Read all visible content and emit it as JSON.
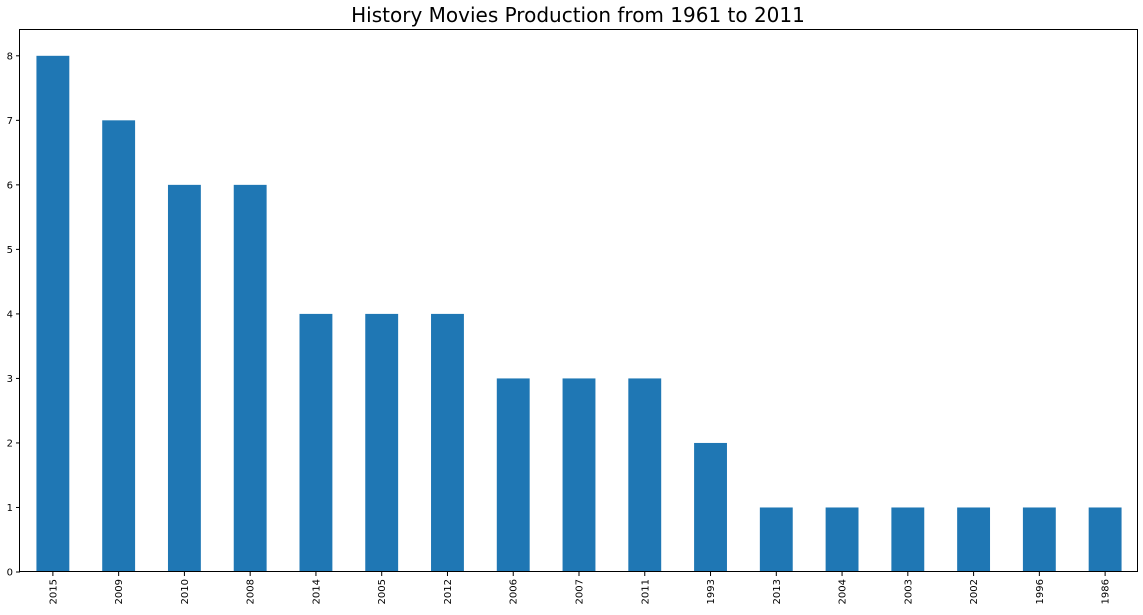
{
  "chart_data": {
    "type": "bar",
    "title": "History Movies Production from 1961 to 2011",
    "xlabel": "",
    "ylabel": "",
    "categories": [
      "2015",
      "2009",
      "2010",
      "2008",
      "2014",
      "2005",
      "2012",
      "2006",
      "2007",
      "2011",
      "1993",
      "2013",
      "2004",
      "2003",
      "2002",
      "1996",
      "1986"
    ],
    "values": [
      8,
      7,
      6,
      6,
      4,
      4,
      4,
      3,
      3,
      3,
      2,
      1,
      1,
      1,
      1,
      1,
      1
    ],
    "ylim": [
      0,
      8.4
    ],
    "yticks": [
      "0",
      "1",
      "2",
      "3",
      "4",
      "5",
      "6",
      "7",
      "8"
    ],
    "grid": false,
    "legend": "none",
    "bar_color": "#1f77b4"
  }
}
